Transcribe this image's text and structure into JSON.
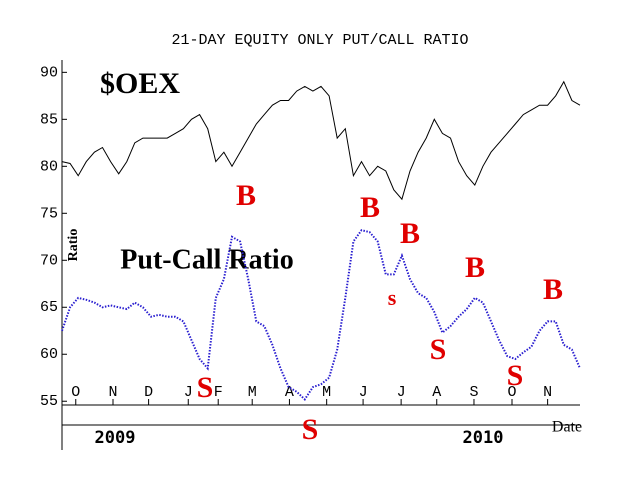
{
  "chart_data": {
    "type": "line",
    "title": "21-DAY EQUITY ONLY PUT/CALL RATIO",
    "y_label": "Ratio",
    "x_label": "Date",
    "period_labels": [
      "2009",
      "2010"
    ],
    "xlim": [
      0,
      64
    ],
    "xticks": [
      {
        "value": 1.7,
        "label": "O"
      },
      {
        "value": 6.3,
        "label": "N"
      },
      {
        "value": 10.7,
        "label": "D"
      },
      {
        "value": 15.6,
        "label": "J"
      },
      {
        "value": 19.3,
        "label": "F"
      },
      {
        "value": 23.5,
        "label": "M"
      },
      {
        "value": 28.1,
        "label": "A"
      },
      {
        "value": 32.7,
        "label": "M"
      },
      {
        "value": 37.2,
        "label": "J"
      },
      {
        "value": 41.9,
        "label": "J"
      },
      {
        "value": 46.3,
        "label": "A"
      },
      {
        "value": 50.9,
        "label": "S"
      },
      {
        "value": 55.6,
        "label": "O"
      },
      {
        "value": 60.0,
        "label": "N"
      }
    ],
    "ylim": [
      54.6,
      91.1
    ],
    "yticks": [
      55,
      60,
      65,
      70,
      75,
      80,
      85,
      90
    ],
    "grid": false,
    "series": [
      {
        "name": "$OEX",
        "color": "#000000",
        "values": [
          80.5,
          80.3,
          79,
          80.5,
          81.5,
          82,
          80.5,
          79.2,
          80.5,
          82.5,
          83,
          83,
          83,
          83,
          83.5,
          84,
          85,
          85.5,
          84,
          80.5,
          81.5,
          80,
          81.5,
          83,
          84.5,
          85.5,
          86.5,
          87,
          87,
          88,
          88.5,
          88,
          88.5,
          87.5,
          83,
          84,
          79,
          80.5,
          79,
          80,
          79.5,
          77.5,
          76.5,
          79.5,
          81.5,
          83,
          85,
          83.5,
          83,
          80.5,
          79,
          78,
          80,
          81.5,
          82.5,
          83.5,
          84.5,
          85.5,
          86,
          86.5,
          86.5,
          87.5,
          89,
          87,
          86.5
        ]
      },
      {
        "name": "Put-Call Ratio",
        "color": "#2a1fd0",
        "values": [
          62.5,
          65,
          66,
          65.8,
          65.5,
          65,
          65.2,
          65,
          64.8,
          65.5,
          65,
          64,
          64.2,
          64,
          64,
          63.5,
          61.5,
          59.5,
          58.5,
          66,
          68,
          72.5,
          72,
          68,
          63.5,
          63,
          61,
          58.5,
          56.5,
          56,
          55.2,
          56.5,
          56.8,
          57.5,
          60.5,
          66,
          72,
          73.2,
          73,
          72,
          68.5,
          68.5,
          70.5,
          68,
          66.5,
          66,
          64.5,
          62.3,
          63,
          64,
          64.8,
          66,
          65.5,
          63.5,
          61.5,
          59.8,
          59.5,
          60.2,
          60.8,
          62.5,
          63.5,
          63.5,
          61,
          60.5,
          58.5
        ]
      }
    ],
    "annotation_color": "#e00000",
    "annotations": [
      "B",
      "B",
      "B",
      "s",
      "B",
      "B",
      "S",
      "S",
      "S",
      "S"
    ]
  }
}
